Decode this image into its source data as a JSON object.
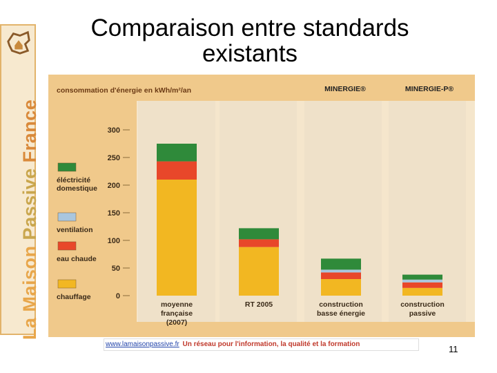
{
  "slide": {
    "title_line1": "Comparaison entre standards",
    "title_line2": "existants",
    "page_number": "11"
  },
  "brand": {
    "word1": "La",
    "word2": "Maison",
    "word3": "Passive",
    "word4": "France",
    "logo_icon": "house-map-icon"
  },
  "footer": {
    "link_text": "www.lamaisonpassive.fr",
    "tagline": "Un réseau pour l'information, la qualité et la formation"
  },
  "colors": {
    "chauffage": "#f2b722",
    "eau_chaude": "#e8472a",
    "ventilation": "#a9c6de",
    "electricite": "#2f8a3a",
    "background": "#f0c98b",
    "panel": "#f5e6cc"
  },
  "chart_data": {
    "type": "bar",
    "stacked": true,
    "title": "consommation d'énergie en kWh/m²/an",
    "ylim": [
      0,
      300
    ],
    "yticks": [
      "0",
      "50",
      "100",
      "150",
      "200",
      "250",
      "300"
    ],
    "categories": [
      [
        "moyenne",
        "française",
        "(2007)"
      ],
      [
        "RT 2005"
      ],
      [
        "construction",
        "basse énergie"
      ],
      [
        "construction",
        "passive"
      ]
    ],
    "series": [
      {
        "name": "chauffage",
        "values": [
          210,
          88,
          30,
          14
        ]
      },
      {
        "name": "eau chaude",
        "values": [
          33,
          14,
          12,
          10
        ]
      },
      {
        "name": "ventilation",
        "values": [
          0,
          0,
          5,
          5
        ]
      },
      {
        "name": "éléctricité domestique",
        "values": [
          32,
          20,
          20,
          9
        ]
      }
    ],
    "legend_labels": [
      [
        "éléctricité",
        "domestique"
      ],
      [
        "ventilation"
      ],
      [
        "eau chaude"
      ],
      [
        "chauffage"
      ]
    ],
    "standard_labels": [
      {
        "text": "MINERGIE®",
        "category_index": 2
      },
      {
        "text": "MINERGIE-P®",
        "category_index": 3
      }
    ],
    "grid": false,
    "legend": "left"
  }
}
